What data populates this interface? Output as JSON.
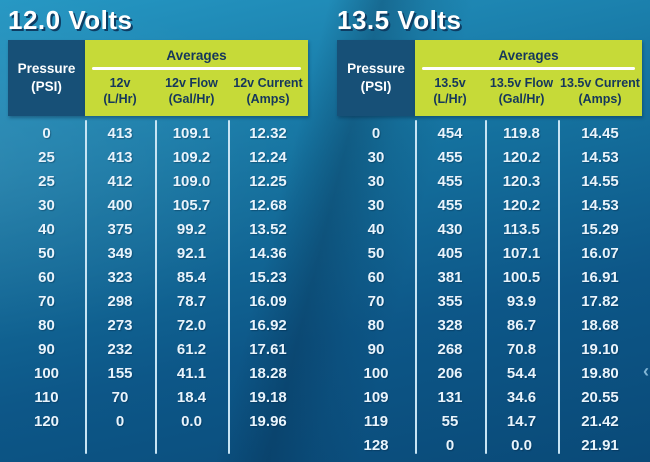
{
  "page": {
    "chevron_glyph": "‹"
  },
  "colors": {
    "background_top": "#2597c3",
    "background_bottom": "#0a4a78",
    "lime_header": "#c6da38",
    "navy_header_cell": "#175077",
    "header_text_navy": "#15375c",
    "data_text": "#e9f4fc",
    "divider": "#c7e4f4",
    "title_text": "#ffffff",
    "title_shadow": "#0d3d63"
  },
  "chart_data": [
    {
      "type": "table",
      "title": "12.0 Volts",
      "header_group": "Averages",
      "row_header": {
        "line1": "Pressure",
        "line2": "(PSI)"
      },
      "columns": [
        {
          "line1": "12v",
          "line2": "(L/Hr)"
        },
        {
          "line1": "12v Flow",
          "line2": "(Gal/Hr)"
        },
        {
          "line1": "12v Current",
          "line2": "(Amps)"
        }
      ],
      "column_meanings": [
        "Pressure (PSI)",
        "12v (L/Hr)",
        "12v Flow (Gal/Hr)",
        "12v Current (Amps)"
      ],
      "rows": [
        [
          "0",
          "413",
          "109.1",
          "12.32"
        ],
        [
          "25",
          "413",
          "109.2",
          "12.24"
        ],
        [
          "25",
          "412",
          "109.0",
          "12.25"
        ],
        [
          "30",
          "400",
          "105.7",
          "12.68"
        ],
        [
          "40",
          "375",
          "99.2",
          "13.52"
        ],
        [
          "50",
          "349",
          "92.1",
          "14.36"
        ],
        [
          "60",
          "323",
          "85.4",
          "15.23"
        ],
        [
          "70",
          "298",
          "78.7",
          "16.09"
        ],
        [
          "80",
          "273",
          "72.0",
          "16.92"
        ],
        [
          "90",
          "232",
          "61.2",
          "17.61"
        ],
        [
          "100",
          "155",
          "41.1",
          "18.28"
        ],
        [
          "110",
          "70",
          "18.4",
          "19.18"
        ],
        [
          "120",
          "0",
          "0.0",
          "19.96"
        ]
      ]
    },
    {
      "type": "table",
      "title": "13.5 Volts",
      "header_group": "Averages",
      "row_header": {
        "line1": "Pressure",
        "line2": "(PSI)"
      },
      "columns": [
        {
          "line1": "13.5v",
          "line2": "(L/Hr)"
        },
        {
          "line1": "13.5v Flow",
          "line2": "(Gal/Hr)"
        },
        {
          "line1": "13.5v Current",
          "line2": "(Amps)"
        }
      ],
      "column_meanings": [
        "Pressure (PSI)",
        "13.5v (L/Hr)",
        "13.5v Flow (Gal/Hr)",
        "13.5v Current (Amps)"
      ],
      "rows": [
        [
          "0",
          "454",
          "119.8",
          "14.45"
        ],
        [
          "30",
          "455",
          "120.2",
          "14.53"
        ],
        [
          "30",
          "455",
          "120.3",
          "14.55"
        ],
        [
          "30",
          "455",
          "120.2",
          "14.53"
        ],
        [
          "40",
          "430",
          "113.5",
          "15.29"
        ],
        [
          "50",
          "405",
          "107.1",
          "16.07"
        ],
        [
          "60",
          "381",
          "100.5",
          "16.91"
        ],
        [
          "70",
          "355",
          "93.9",
          "17.82"
        ],
        [
          "80",
          "328",
          "86.7",
          "18.68"
        ],
        [
          "90",
          "268",
          "70.8",
          "19.10"
        ],
        [
          "100",
          "206",
          "54.4",
          "19.80"
        ],
        [
          "109",
          "131",
          "34.6",
          "20.55"
        ],
        [
          "119",
          "55",
          "14.7",
          "21.42"
        ],
        [
          "128",
          "0",
          "0.0",
          "21.91"
        ]
      ]
    }
  ]
}
